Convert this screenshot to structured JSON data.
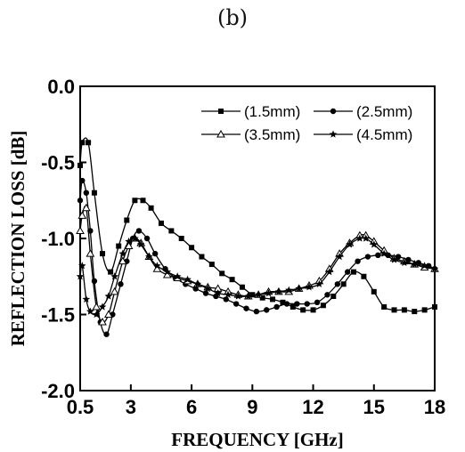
{
  "panel_label": "(b)",
  "chart_data": {
    "type": "line",
    "xlabel": "FREQUENCY [GHz]",
    "ylabel": "REFLECTION LOSS [dB]",
    "xlim": [
      0.5,
      18
    ],
    "ylim": [
      -2.0,
      0.0
    ],
    "x_ticks": [
      0.5,
      3,
      6,
      9,
      12,
      15,
      18
    ],
    "x_tick_labels": [
      "0.5",
      "3",
      "6",
      "9",
      "12",
      "15",
      "18"
    ],
    "y_ticks": [
      0.0,
      -0.5,
      -1.0,
      -1.5,
      -2.0
    ],
    "y_tick_labels": [
      "0.0",
      "-0.5",
      "-1.0",
      "-1.5",
      "-2.0"
    ],
    "legend_position": "top-right",
    "series": [
      {
        "name": "(1.5mm)",
        "marker": "square",
        "x": [
          0.5,
          0.6,
          0.9,
          1.2,
          1.6,
          2.0,
          2.4,
          2.8,
          3.2,
          3.6,
          4.0,
          4.5,
          5.0,
          5.5,
          6.0,
          6.5,
          7.0,
          7.5,
          8.0,
          8.5,
          9.0,
          9.5,
          10.0,
          10.5,
          11.0,
          11.5,
          12.0,
          12.5,
          13.0,
          13.5,
          14.0,
          14.5,
          15.0,
          15.5,
          16.0,
          16.5,
          17.0,
          17.5,
          18.0
        ],
        "y": [
          -0.52,
          -0.37,
          -0.37,
          -0.7,
          -1.1,
          -1.22,
          -1.05,
          -0.88,
          -0.75,
          -0.75,
          -0.8,
          -0.9,
          -0.95,
          -1.0,
          -1.06,
          -1.12,
          -1.17,
          -1.23,
          -1.27,
          -1.32,
          -1.37,
          -1.39,
          -1.4,
          -1.42,
          -1.45,
          -1.47,
          -1.47,
          -1.44,
          -1.38,
          -1.3,
          -1.22,
          -1.25,
          -1.35,
          -1.45,
          -1.47,
          -1.47,
          -1.48,
          -1.47,
          -1.45
        ]
      },
      {
        "name": "(2.5mm)",
        "marker": "circle",
        "x": [
          0.5,
          0.6,
          0.8,
          1.0,
          1.2,
          1.5,
          1.8,
          2.1,
          2.5,
          2.8,
          3.1,
          3.4,
          3.8,
          4.2,
          4.7,
          5.2,
          5.7,
          6.2,
          6.7,
          7.2,
          7.7,
          8.2,
          8.7,
          9.2,
          9.7,
          10.2,
          10.7,
          11.2,
          11.7,
          12.2,
          12.7,
          13.2,
          13.7,
          14.2,
          14.7,
          15.2,
          15.7,
          16.2,
          16.7,
          17.2,
          17.7,
          18.0
        ],
        "y": [
          -0.75,
          -0.62,
          -0.7,
          -0.95,
          -1.28,
          -1.55,
          -1.63,
          -1.5,
          -1.3,
          -1.15,
          -1.0,
          -0.95,
          -1.0,
          -1.1,
          -1.2,
          -1.26,
          -1.3,
          -1.33,
          -1.36,
          -1.38,
          -1.4,
          -1.43,
          -1.46,
          -1.48,
          -1.47,
          -1.45,
          -1.43,
          -1.43,
          -1.43,
          -1.42,
          -1.37,
          -1.3,
          -1.22,
          -1.15,
          -1.12,
          -1.11,
          -1.11,
          -1.12,
          -1.14,
          -1.16,
          -1.18,
          -1.2
        ]
      },
      {
        "name": "(3.5mm)",
        "marker": "triangle",
        "x": [
          0.5,
          0.6,
          0.8,
          1.0,
          1.3,
          1.6,
          1.9,
          2.2,
          2.6,
          2.9,
          3.2,
          3.5,
          3.9,
          4.3,
          4.8,
          5.3,
          5.8,
          6.3,
          6.8,
          7.3,
          7.8,
          8.3,
          8.8,
          9.3,
          9.8,
          10.3,
          10.8,
          11.3,
          11.8,
          12.3,
          12.8,
          13.3,
          13.8,
          14.3,
          14.6,
          15.0,
          15.5,
          16.0,
          16.5,
          17.0,
          17.5,
          18.0
        ],
        "y": [
          -0.95,
          -0.85,
          -0.8,
          -1.1,
          -1.45,
          -1.55,
          -1.5,
          -1.35,
          -1.15,
          -1.05,
          -1.0,
          -1.03,
          -1.12,
          -1.2,
          -1.24,
          -1.26,
          -1.28,
          -1.3,
          -1.32,
          -1.33,
          -1.35,
          -1.37,
          -1.38,
          -1.37,
          -1.35,
          -1.35,
          -1.35,
          -1.33,
          -1.31,
          -1.28,
          -1.2,
          -1.1,
          -1.03,
          -0.98,
          -0.98,
          -1.02,
          -1.08,
          -1.13,
          -1.15,
          -1.17,
          -1.19,
          -1.2
        ]
      },
      {
        "name": "(4.5mm)",
        "marker": "star",
        "x": [
          0.5,
          0.6,
          0.8,
          1.0,
          1.3,
          1.6,
          1.9,
          2.2,
          2.6,
          2.9,
          3.2,
          3.5,
          3.9,
          4.3,
          4.8,
          5.3,
          5.8,
          6.3,
          6.8,
          7.3,
          7.8,
          8.3,
          8.8,
          9.3,
          9.8,
          10.3,
          10.8,
          11.3,
          11.8,
          12.3,
          12.8,
          13.3,
          13.8,
          14.3,
          14.6,
          15.0,
          15.5,
          16.0,
          16.5,
          17.0,
          17.5,
          18.0
        ],
        "y": [
          -1.25,
          -1.18,
          -1.4,
          -1.48,
          -1.5,
          -1.45,
          -1.38,
          -1.25,
          -1.1,
          -1.02,
          -1.0,
          -1.04,
          -1.12,
          -1.18,
          -1.22,
          -1.25,
          -1.27,
          -1.3,
          -1.33,
          -1.36,
          -1.37,
          -1.38,
          -1.38,
          -1.37,
          -1.36,
          -1.35,
          -1.34,
          -1.33,
          -1.32,
          -1.3,
          -1.22,
          -1.12,
          -1.04,
          -1.0,
          -1.0,
          -1.04,
          -1.1,
          -1.14,
          -1.16,
          -1.17,
          -1.18,
          -1.2
        ]
      }
    ]
  }
}
